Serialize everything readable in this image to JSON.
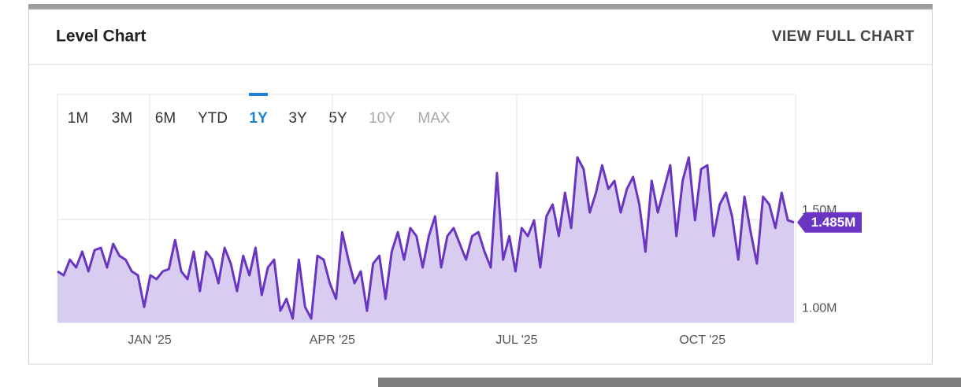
{
  "header": {
    "title": "Level Chart",
    "link": "VIEW FULL CHART"
  },
  "ranges": [
    {
      "label": "1M"
    },
    {
      "label": "3M"
    },
    {
      "label": "6M"
    },
    {
      "label": "YTD"
    },
    {
      "label": "1Y",
      "selected": true
    },
    {
      "label": "3Y"
    },
    {
      "label": "5Y"
    },
    {
      "label": "10Y",
      "disabled": true
    },
    {
      "label": "MAX",
      "disabled": true
    }
  ],
  "chart_data": {
    "type": "area",
    "color": "#6a35c0",
    "fill": "#d8ccf1",
    "values": [
      1234000,
      1214000,
      1294000,
      1254000,
      1335000,
      1234000,
      1343000,
      1355000,
      1254000,
      1375000,
      1314000,
      1294000,
      1234000,
      1214000,
      1052000,
      1214000,
      1194000,
      1234000,
      1246000,
      1395000,
      1234000,
      1194000,
      1335000,
      1133000,
      1335000,
      1294000,
      1173000,
      1355000,
      1274000,
      1133000,
      1314000,
      1214000,
      1355000,
      1113000,
      1254000,
      1294000,
      1032000,
      1093000,
      992000,
      1294000,
      1052000,
      992000,
      1314000,
      1294000,
      1173000,
      1093000,
      1435000,
      1294000,
      1173000,
      1234000,
      1032000,
      1274000,
      1314000,
      1093000,
      1335000,
      1435000,
      1294000,
      1456000,
      1415000,
      1254000,
      1415000,
      1516000,
      1254000,
      1415000,
      1456000,
      1375000,
      1294000,
      1415000,
      1435000,
      1335000,
      1254000,
      1738000,
      1294000,
      1415000,
      1234000,
      1456000,
      1415000,
      1496000,
      1254000,
      1516000,
      1577000,
      1415000,
      1637000,
      1456000,
      1818000,
      1758000,
      1536000,
      1637000,
      1778000,
      1657000,
      1698000,
      1536000,
      1657000,
      1718000,
      1577000,
      1335000,
      1698000,
      1536000,
      1657000,
      1778000,
      1415000,
      1698000,
      1818000,
      1496000,
      1758000,
      1778000,
      1415000,
      1577000,
      1637000,
      1516000,
      1294000,
      1617000,
      1435000,
      1274000,
      1617000,
      1577000,
      1456000,
      1637000,
      1496000,
      1485000
    ],
    "xlim": [
      0,
      119
    ],
    "xticks": [
      {
        "value": 14.9,
        "label": "JAN '25"
      },
      {
        "value": 44.4,
        "label": "APR '25"
      },
      {
        "value": 74.2,
        "label": "JUL '25"
      },
      {
        "value": 104.2,
        "label": "OCT '25"
      }
    ],
    "ylim": [
      972000,
      2141000
    ],
    "yticks": [
      {
        "value": 1000000,
        "label": "1.00M"
      },
      {
        "value": 1500000,
        "label": "1.50M"
      }
    ],
    "current": {
      "value": 1485000,
      "label": "1.485M"
    },
    "grid": true
  }
}
